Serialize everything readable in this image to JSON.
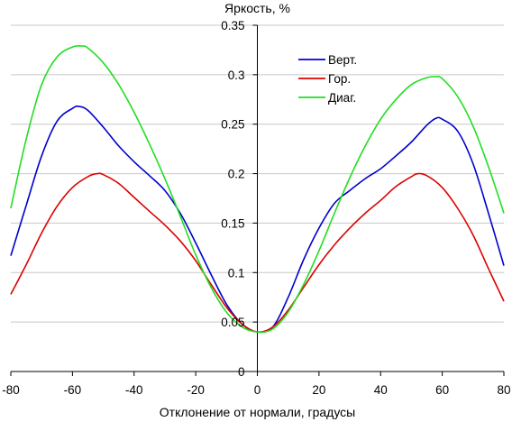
{
  "chart_data": {
    "type": "line",
    "title": "",
    "xlabel": "Отклонение от нормали, градусы",
    "ylabel": "Яркость, %",
    "xlim": [
      -80,
      80
    ],
    "ylim": [
      0,
      0.35
    ],
    "x_ticks": [
      -80,
      -60,
      -40,
      -20,
      0,
      20,
      40,
      60,
      80
    ],
    "x_tick_labels": [
      "-80",
      "-60",
      "-40",
      "-20",
      "0",
      "20",
      "40",
      "60",
      "80"
    ],
    "y_ticks": [
      0,
      0.05,
      0.1,
      0.15,
      0.2,
      0.25,
      0.3,
      0.35
    ],
    "y_tick_labels": [
      "0",
      "0.05",
      "0.1",
      "0.15",
      "0.2",
      "0.25",
      "0.3",
      "0.35"
    ],
    "grid": "horizontal",
    "legend_position": "top-right",
    "series": [
      {
        "name": "Верт.",
        "color": "#0000cc",
        "x": [
          -80,
          -75,
          -70,
          -65,
          -60,
          -58,
          -55,
          -50,
          -45,
          -40,
          -35,
          -30,
          -25,
          -20,
          -15,
          -10,
          -5,
          0,
          5,
          10,
          15,
          20,
          25,
          30,
          35,
          40,
          45,
          50,
          55,
          58,
          60,
          65,
          70,
          75,
          80
        ],
        "y": [
          0.117,
          0.168,
          0.218,
          0.253,
          0.266,
          0.268,
          0.264,
          0.247,
          0.228,
          0.212,
          0.198,
          0.183,
          0.16,
          0.13,
          0.098,
          0.068,
          0.048,
          0.04,
          0.045,
          0.075,
          0.113,
          0.145,
          0.17,
          0.183,
          0.195,
          0.205,
          0.218,
          0.232,
          0.249,
          0.256,
          0.255,
          0.243,
          0.21,
          0.16,
          0.107
        ]
      },
      {
        "name": "Гор.",
        "color": "#dd0000",
        "x": [
          -80,
          -75,
          -70,
          -65,
          -60,
          -55,
          -52,
          -50,
          -45,
          -40,
          -35,
          -30,
          -25,
          -20,
          -15,
          -10,
          -5,
          0,
          5,
          10,
          15,
          20,
          25,
          30,
          35,
          40,
          45,
          50,
          52,
          55,
          60,
          65,
          70,
          75,
          80
        ],
        "y": [
          0.078,
          0.108,
          0.14,
          0.167,
          0.186,
          0.197,
          0.2,
          0.199,
          0.19,
          0.176,
          0.162,
          0.148,
          0.132,
          0.112,
          0.088,
          0.065,
          0.048,
          0.04,
          0.045,
          0.062,
          0.085,
          0.108,
          0.128,
          0.145,
          0.16,
          0.173,
          0.187,
          0.197,
          0.2,
          0.198,
          0.186,
          0.165,
          0.138,
          0.104,
          0.071
        ]
      },
      {
        "name": "Диаг.",
        "color": "#22dd22",
        "x": [
          -80,
          -75,
          -70,
          -65,
          -60,
          -57,
          -55,
          -50,
          -45,
          -40,
          -35,
          -30,
          -25,
          -20,
          -15,
          -10,
          -5,
          0,
          5,
          10,
          15,
          20,
          25,
          30,
          35,
          40,
          45,
          50,
          55,
          58,
          60,
          65,
          70,
          75,
          80
        ],
        "y": [
          0.165,
          0.235,
          0.29,
          0.318,
          0.328,
          0.329,
          0.327,
          0.312,
          0.29,
          0.262,
          0.23,
          0.195,
          0.157,
          0.118,
          0.085,
          0.06,
          0.045,
          0.04,
          0.043,
          0.06,
          0.088,
          0.122,
          0.16,
          0.196,
          0.228,
          0.255,
          0.275,
          0.29,
          0.297,
          0.298,
          0.296,
          0.278,
          0.248,
          0.207,
          0.16
        ]
      }
    ]
  }
}
